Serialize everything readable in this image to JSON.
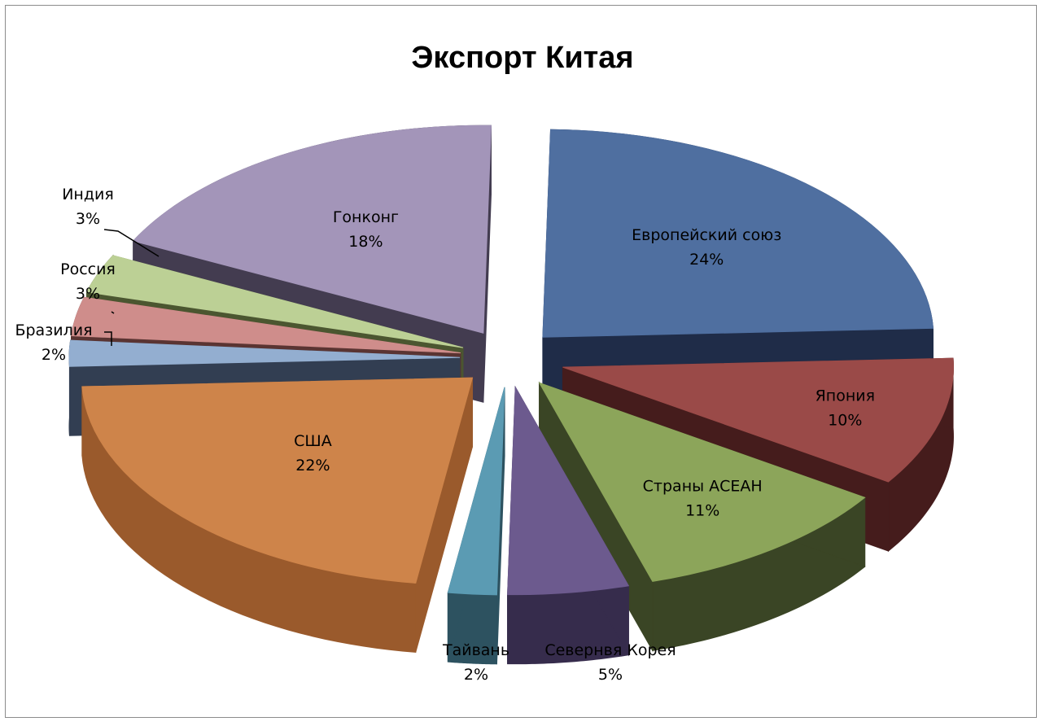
{
  "chart_data": {
    "type": "pie",
    "title": "Экспорт Китая",
    "three_d": true,
    "exploded": true,
    "slices": [
      {
        "name": "Европейский союз",
        "value": 24,
        "label": "24%",
        "color": "#4F6FA0",
        "side_color": "#1F2C48"
      },
      {
        "name": "Япония",
        "value": 10,
        "label": "10%",
        "color": "#9A4A48",
        "side_color": "#451C1C"
      },
      {
        "name": "Страны АСЕАН",
        "value": 11,
        "label": "11%",
        "color": "#8CA55A",
        "side_color": "#3A4525"
      },
      {
        "name": "Севернвя Корея",
        "value": 5,
        "label": "5%",
        "color": "#6C5A8E",
        "side_color": "#362C4C"
      },
      {
        "name": "Тайвань",
        "value": 2,
        "label": "2%",
        "color": "#5B9BB3",
        "side_color": "#2D5260"
      },
      {
        "name": "США",
        "value": 22,
        "label": "22%",
        "color": "#CE844A",
        "side_color": "#9A5A2C"
      },
      {
        "name": "Бразилия",
        "value": 2,
        "label": "2%",
        "color": "#93AED0",
        "side_color": "#323E52"
      },
      {
        "name": "Россия",
        "value": 3,
        "label": "3%",
        "color": "#CF8D8B",
        "side_color": "#5A3432"
      },
      {
        "name": "Индия",
        "value": 3,
        "label": "3%",
        "color": "#BCD095",
        "side_color": "#4B5630"
      },
      {
        "name": "Гонконг",
        "value": 18,
        "label": "18%",
        "color": "#A395B9",
        "side_color": "#433C50"
      }
    ],
    "legend": "none",
    "data_labels": "category and percentage"
  }
}
